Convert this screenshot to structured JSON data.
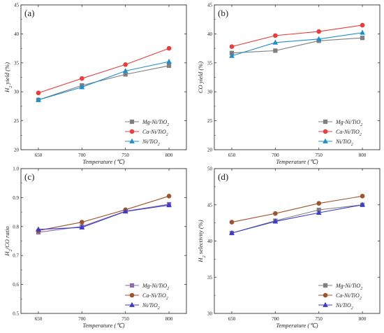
{
  "chart_data": [
    {
      "type": "line",
      "panel": "(a)",
      "xlabel": "Temperature (℃)",
      "ylabel": "H₂ yield (%)",
      "x": [
        650,
        700,
        750,
        800
      ],
      "xlim": [
        630,
        820
      ],
      "ylim": [
        20,
        45
      ],
      "yticks": [
        20,
        25,
        30,
        35,
        40,
        45
      ],
      "legend": "bottom-right",
      "series": [
        {
          "name": "Mg-Ni/TiO₂",
          "color": "#7f7f7f",
          "marker": "square",
          "values": [
            28.6,
            31.1,
            33.0,
            34.5
          ]
        },
        {
          "name": "Ca-Ni/TiO₂",
          "color": "#ee3b3b",
          "marker": "circle",
          "values": [
            29.8,
            32.3,
            34.7,
            37.5
          ]
        },
        {
          "name": "Ni/TiO₂",
          "color": "#1f8fd0",
          "marker": "triangle",
          "values": [
            28.6,
            30.8,
            33.6,
            35.2
          ]
        }
      ]
    },
    {
      "type": "line",
      "panel": "(b)",
      "xlabel": "Temperature (℃)",
      "ylabel": "CO yield (%)",
      "x": [
        650,
        700,
        750,
        800
      ],
      "xlim": [
        630,
        820
      ],
      "ylim": [
        20,
        45
      ],
      "yticks": [
        20,
        25,
        30,
        35,
        40,
        45
      ],
      "legend": "bottom-right",
      "series": [
        {
          "name": "Mg-Ni/TiO₂",
          "color": "#7f7f7f",
          "marker": "square",
          "values": [
            36.7,
            37.1,
            38.8,
            39.3
          ]
        },
        {
          "name": "Ca-Ni/TiO₂",
          "color": "#ee3b3b",
          "marker": "circle",
          "values": [
            37.8,
            39.7,
            40.4,
            41.5
          ]
        },
        {
          "name": "Ni/TiO₂",
          "color": "#1f8fd0",
          "marker": "triangle",
          "values": [
            36.2,
            38.5,
            39.1,
            40.2
          ]
        }
      ]
    },
    {
      "type": "line",
      "panel": "(c)",
      "xlabel": "Temperature (℃)",
      "ylabel": "H₂/CO ratio",
      "x": [
        650,
        700,
        750,
        800
      ],
      "xlim": [
        630,
        820
      ],
      "ylim": [
        0.5,
        1.0
      ],
      "yticks": [
        0.5,
        0.6,
        0.7,
        0.8,
        0.9,
        1.0
      ],
      "legend": "bottom-right",
      "series": [
        {
          "name": "Mg-Ni/TiO₂",
          "color": "#8a6fa8",
          "marker": "square",
          "values": [
            0.78,
            0.8,
            0.853,
            0.877
          ]
        },
        {
          "name": "Ca-Ni/TiO₂",
          "color": "#a0522d",
          "marker": "circle",
          "values": [
            0.786,
            0.815,
            0.858,
            0.905
          ]
        },
        {
          "name": "Ni/TiO₂",
          "color": "#3b3bd0",
          "marker": "triangle",
          "values": [
            0.79,
            0.797,
            0.852,
            0.874
          ]
        }
      ]
    },
    {
      "type": "line",
      "panel": "(d)",
      "xlabel": "Temperature (℃)",
      "ylabel": "H₂ selectivity (%)",
      "x": [
        650,
        700,
        750,
        800
      ],
      "xlim": [
        630,
        820
      ],
      "ylim": [
        30,
        50
      ],
      "yticks": [
        30,
        35,
        40,
        45,
        50
      ],
      "legend": "bottom-right",
      "series": [
        {
          "name": "Mg-Ni/TiO₂",
          "color": "#7f7f7f",
          "marker": "square",
          "values": [
            41.1,
            42.8,
            44.3,
            45.0
          ]
        },
        {
          "name": "Ca-Ni/TiO₂",
          "color": "#a0522d",
          "marker": "circle",
          "values": [
            42.6,
            43.8,
            45.2,
            46.2
          ]
        },
        {
          "name": "Ni/TiO₂",
          "color": "#3b3bd0",
          "marker": "triangle",
          "values": [
            41.1,
            42.7,
            43.9,
            45.0
          ]
        }
      ]
    }
  ]
}
